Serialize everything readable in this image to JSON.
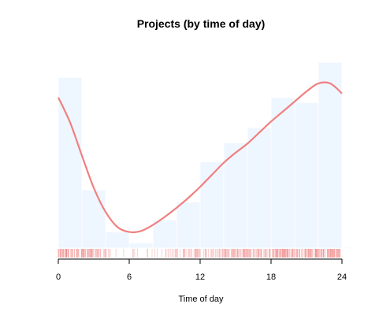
{
  "chart_data": {
    "type": "bar",
    "title": "Projects (by time of day)",
    "xlabel": "Time of day",
    "ylabel": "",
    "xlim": [
      0,
      24
    ],
    "x_ticks": [
      0,
      6,
      12,
      18,
      24
    ],
    "bins": [
      {
        "start": 0,
        "end": 2,
        "value": 0.17
      },
      {
        "start": 2,
        "end": 4,
        "value": 0.058
      },
      {
        "start": 4,
        "end": 6,
        "value": 0.016
      },
      {
        "start": 6,
        "end": 8,
        "value": 0.005
      },
      {
        "start": 8,
        "end": 10,
        "value": 0.028
      },
      {
        "start": 10,
        "end": 12,
        "value": 0.046
      },
      {
        "start": 12,
        "end": 14,
        "value": 0.086
      },
      {
        "start": 14,
        "end": 16,
        "value": 0.105
      },
      {
        "start": 16,
        "end": 18,
        "value": 0.12
      },
      {
        "start": 18,
        "end": 20,
        "value": 0.15
      },
      {
        "start": 20,
        "end": 22,
        "value": 0.145
      },
      {
        "start": 22,
        "end": 24,
        "value": 0.185
      },
      {
        "start": 24,
        "end": 25,
        "value": 0.001
      }
    ],
    "density_line": {
      "x": [
        0,
        1,
        2,
        3,
        4,
        5,
        6,
        7,
        8,
        9,
        10,
        11,
        12,
        13,
        14,
        15,
        16,
        17,
        18,
        19,
        20,
        21,
        22,
        23,
        24
      ],
      "y": [
        0.15,
        0.125,
        0.092,
        0.06,
        0.036,
        0.021,
        0.016,
        0.017,
        0.023,
        0.031,
        0.04,
        0.05,
        0.061,
        0.073,
        0.085,
        0.095,
        0.104,
        0.115,
        0.126,
        0.136,
        0.146,
        0.156,
        0.164,
        0.164,
        0.154
      ]
    },
    "rug": true,
    "ylim": [
      0,
      0.2
    ],
    "colors": {
      "bar_fill": "#eef6ff",
      "bar_stroke": "#ffffff",
      "density": "#f08080",
      "rug": "#f08080"
    }
  }
}
